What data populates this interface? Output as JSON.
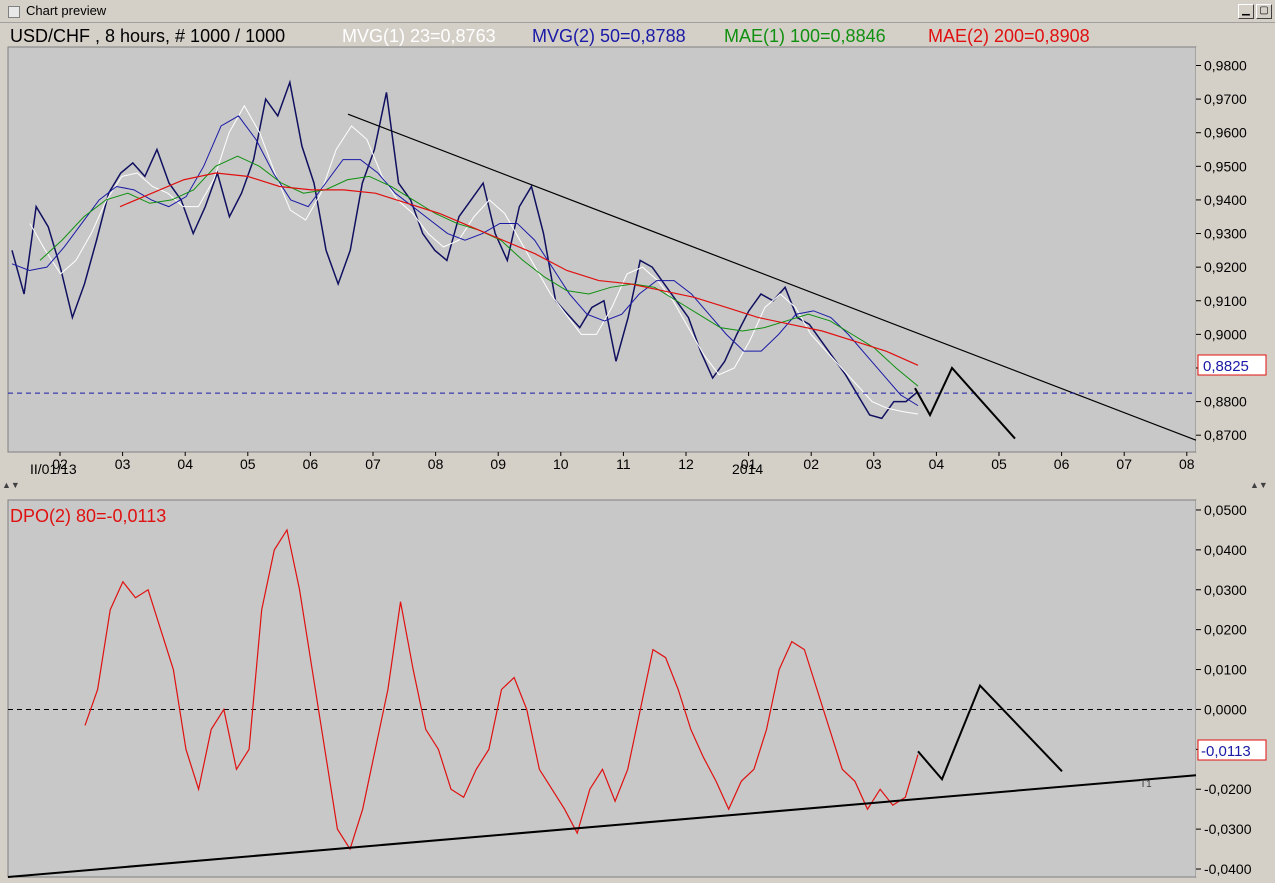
{
  "window": {
    "title": "Chart preview",
    "minimize_glyph": "▁",
    "maximize_glyph": "▢"
  },
  "top_panel": {
    "header": "USD/CHF , 8 hours, # 1000 / 1000",
    "indicators": [
      {
        "label": "MVG(1) 23=0,8763",
        "color": "#ffffff"
      },
      {
        "label": "MVG(2) 50=0,8788",
        "color": "#1a1aa6"
      },
      {
        "label": "MAE(1) 100=0,8846",
        "color": "#109010"
      },
      {
        "label": "MAE(2) 200=0,8908",
        "color": "#e01010"
      }
    ],
    "price_label": "0,8825",
    "ticks": [
      "0,8700",
      "0,8800",
      "0,8900",
      "0,9000",
      "0,9100",
      "0,9200",
      "0,9300",
      "0,9400",
      "0,9500",
      "0,9600",
      "0,9700",
      "0,9800"
    ],
    "x_labels": [
      "02",
      "03",
      "04",
      "05",
      "06",
      "07",
      "08",
      "09",
      "10",
      "11",
      "12",
      "01",
      "02",
      "03",
      "04",
      "05",
      "06",
      "07",
      "08"
    ],
    "date_label": "II/01/13",
    "year_label": "2014"
  },
  "bottom_panel": {
    "header": "DPO(2) 80=-0,0113",
    "value_label": "-0,0113",
    "ticks": [
      "-0,0400",
      "-0,0300",
      "-0,0200",
      "-0,0100",
      "0,0000",
      "0,0100",
      "0,0200",
      "0,0300",
      "0,0400",
      "0,0500"
    ],
    "trendline_label": "T1"
  },
  "chart_data": [
    {
      "type": "line",
      "title": "USD/CHF , 8 hours, # 1000 / 1000",
      "ylim": [
        0.865,
        0.9855
      ],
      "x_labels": [
        "02",
        "03",
        "04",
        "05",
        "06",
        "07",
        "08",
        "09",
        "10",
        "11",
        "12",
        "01",
        "02",
        "03",
        "04",
        "05",
        "06",
        "07",
        "08"
      ],
      "series": [
        {
          "name": "USD/CHF",
          "color": "#101060",
          "values": [
            0.925,
            0.912,
            0.938,
            0.932,
            0.92,
            0.905,
            0.915,
            0.928,
            0.942,
            0.948,
            0.951,
            0.947,
            0.955,
            0.945,
            0.94,
            0.93,
            0.938,
            0.948,
            0.935,
            0.942,
            0.952,
            0.97,
            0.965,
            0.975,
            0.956,
            0.945,
            0.925,
            0.915,
            0.925,
            0.945,
            0.955,
            0.972,
            0.945,
            0.94,
            0.93,
            0.925,
            0.922,
            0.935,
            0.94,
            0.945,
            0.93,
            0.922,
            0.938,
            0.944,
            0.93,
            0.91,
            0.906,
            0.902,
            0.908,
            0.91,
            0.892,
            0.905,
            0.922,
            0.92,
            0.915,
            0.91,
            0.905,
            0.895,
            0.887,
            0.892,
            0.9,
            0.907,
            0.912,
            0.91,
            0.914,
            0.905,
            0.903,
            0.898,
            0.893,
            0.888,
            0.882,
            0.876,
            0.875,
            0.88,
            0.88,
            0.883
          ]
        },
        {
          "name": "MVG(1) 23=0,8763",
          "color": "#ffffff",
          "values": [
            0.933,
            0.925,
            0.918,
            0.922,
            0.93,
            0.94,
            0.947,
            0.948,
            0.944,
            0.942,
            0.938,
            0.938,
            0.946,
            0.96,
            0.968,
            0.96,
            0.948,
            0.937,
            0.934,
            0.942,
            0.955,
            0.962,
            0.958,
            0.947,
            0.94,
            0.936,
            0.93,
            0.926,
            0.928,
            0.935,
            0.94,
            0.936,
            0.928,
            0.92,
            0.912,
            0.906,
            0.9,
            0.9,
            0.908,
            0.918,
            0.92,
            0.916,
            0.91,
            0.902,
            0.894,
            0.888,
            0.89,
            0.898,
            0.908,
            0.912,
            0.908,
            0.9,
            0.895,
            0.89,
            0.885,
            0.88,
            0.878,
            0.877,
            0.8763
          ]
        },
        {
          "name": "MVG(2) 50=0,8788",
          "color": "#1a1aa6",
          "values": [
            0.921,
            0.919,
            0.92,
            0.926,
            0.933,
            0.94,
            0.944,
            0.943,
            0.94,
            0.938,
            0.941,
            0.95,
            0.962,
            0.965,
            0.958,
            0.948,
            0.94,
            0.938,
            0.945,
            0.952,
            0.952,
            0.948,
            0.942,
            0.938,
            0.934,
            0.93,
            0.928,
            0.93,
            0.933,
            0.933,
            0.928,
            0.92,
            0.912,
            0.906,
            0.904,
            0.906,
            0.912,
            0.916,
            0.916,
            0.912,
            0.906,
            0.9,
            0.895,
            0.895,
            0.9,
            0.906,
            0.907,
            0.905,
            0.9,
            0.894,
            0.888,
            0.882,
            0.8788
          ]
        },
        {
          "name": "MAE(1) 100=0,8846",
          "color": "#109010",
          "values": [
            0.922,
            0.928,
            0.935,
            0.94,
            0.942,
            0.939,
            0.94,
            0.943,
            0.95,
            0.953,
            0.95,
            0.945,
            0.942,
            0.943,
            0.946,
            0.947,
            0.944,
            0.94,
            0.936,
            0.933,
            0.931,
            0.928,
            0.922,
            0.917,
            0.913,
            0.912,
            0.914,
            0.915,
            0.914,
            0.91,
            0.906,
            0.902,
            0.901,
            0.902,
            0.904,
            0.906,
            0.904,
            0.9,
            0.896,
            0.89,
            0.8846
          ]
        },
        {
          "name": "MAE(2) 200=0,8908",
          "color": "#e01010",
          "values": [
            0.938,
            0.942,
            0.946,
            0.948,
            0.947,
            0.944,
            0.943,
            0.943,
            0.942,
            0.939,
            0.936,
            0.932,
            0.928,
            0.924,
            0.919,
            0.916,
            0.915,
            0.913,
            0.911,
            0.908,
            0.905,
            0.903,
            0.901,
            0.898,
            0.895,
            0.8908
          ]
        }
      ],
      "annotations": {
        "trendline": [
          [
            0.9655,
            0.8685
          ]
        ],
        "price_line": 0.8825,
        "projection": [
          0.884,
          0.876,
          0.89,
          0.869
        ]
      }
    },
    {
      "type": "line",
      "title": "DPO(2) 80=-0,0113",
      "ylim": [
        -0.042,
        0.0525
      ],
      "series": [
        {
          "name": "DPO(2) 80=-0,0113",
          "color": "#e01010",
          "values": [
            -0.004,
            0.005,
            0.025,
            0.032,
            0.028,
            0.03,
            0.02,
            0.01,
            -0.01,
            -0.02,
            -0.005,
            0.0,
            -0.015,
            -0.01,
            0.025,
            0.04,
            0.045,
            0.03,
            0.01,
            -0.01,
            -0.03,
            -0.035,
            -0.025,
            -0.01,
            0.005,
            0.027,
            0.01,
            -0.005,
            -0.01,
            -0.02,
            -0.022,
            -0.015,
            -0.01,
            0.005,
            0.008,
            0.0,
            -0.015,
            -0.02,
            -0.025,
            -0.031,
            -0.02,
            -0.015,
            -0.023,
            -0.015,
            0.0,
            0.015,
            0.013,
            0.005,
            -0.005,
            -0.012,
            -0.018,
            -0.025,
            -0.018,
            -0.015,
            -0.005,
            0.01,
            0.017,
            0.015,
            0.005,
            -0.005,
            -0.015,
            -0.018,
            -0.025,
            -0.02,
            -0.024,
            -0.022,
            -0.0113
          ]
        }
      ],
      "annotations": {
        "zero_line": 0.0,
        "trendline": [
          -0.042,
          -0.0165
        ],
        "projection": [
          -0.0105,
          -0.0175,
          0.006,
          -0.0155
        ]
      }
    }
  ]
}
